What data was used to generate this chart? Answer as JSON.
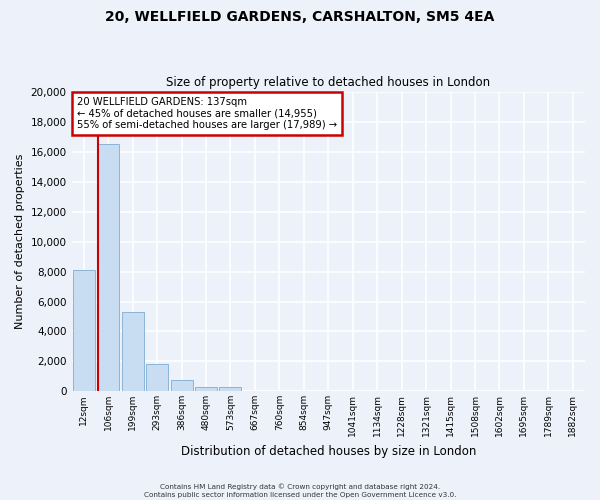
{
  "title": "20, WELLFIELD GARDENS, CARSHALTON, SM5 4EA",
  "subtitle": "Size of property relative to detached houses in London",
  "xlabel": "Distribution of detached houses by size in London",
  "ylabel": "Number of detached properties",
  "categories": [
    "12sqm",
    "106sqm",
    "199sqm",
    "293sqm",
    "386sqm",
    "480sqm",
    "573sqm",
    "667sqm",
    "760sqm",
    "854sqm",
    "947sqm",
    "1041sqm",
    "1134sqm",
    "1228sqm",
    "1321sqm",
    "1415sqm",
    "1508sqm",
    "1602sqm",
    "1695sqm",
    "1789sqm",
    "1882sqm"
  ],
  "bar_values": [
    8100,
    16500,
    5300,
    1850,
    780,
    310,
    270,
    0,
    0,
    0,
    0,
    0,
    0,
    0,
    0,
    0,
    0,
    0,
    0,
    0,
    0
  ],
  "bar_color": "#c9ddf2",
  "bar_edge_color": "#8ab4d8",
  "vline_color": "#cc0000",
  "ylim": [
    0,
    20000
  ],
  "yticks": [
    0,
    2000,
    4000,
    6000,
    8000,
    10000,
    12000,
    14000,
    16000,
    18000,
    20000
  ],
  "annotation_title": "20 WELLFIELD GARDENS: 137sqm",
  "annotation_line1": "← 45% of detached houses are smaller (14,955)",
  "annotation_line2": "55% of semi-detached houses are larger (17,989) →",
  "annotation_box_color": "#ffffff",
  "annotation_box_edge_color": "#cc0000",
  "footer_line1": "Contains HM Land Registry data © Crown copyright and database right 2024.",
  "footer_line2": "Contains public sector information licensed under the Open Government Licence v3.0.",
  "background_color": "#edf2fa",
  "grid_color": "#ffffff"
}
